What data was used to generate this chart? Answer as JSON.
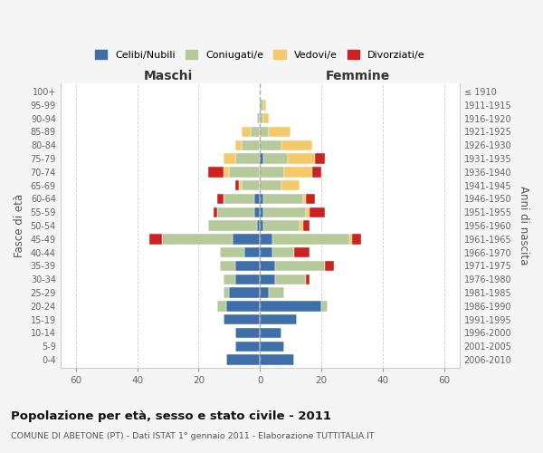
{
  "age_groups": [
    "0-4",
    "5-9",
    "10-14",
    "15-19",
    "20-24",
    "25-29",
    "30-34",
    "35-39",
    "40-44",
    "45-49",
    "50-54",
    "55-59",
    "60-64",
    "65-69",
    "70-74",
    "75-79",
    "80-84",
    "85-89",
    "90-94",
    "95-99",
    "100+"
  ],
  "birth_years": [
    "2006-2010",
    "2001-2005",
    "1996-2000",
    "1991-1995",
    "1986-1990",
    "1981-1985",
    "1976-1980",
    "1971-1975",
    "1966-1970",
    "1961-1965",
    "1956-1960",
    "1951-1955",
    "1946-1950",
    "1941-1945",
    "1936-1940",
    "1931-1935",
    "1926-1930",
    "1921-1925",
    "1916-1920",
    "1911-1915",
    "≤ 1910"
  ],
  "maschi": {
    "celibi": [
      11,
      8,
      8,
      12,
      11,
      10,
      8,
      8,
      5,
      9,
      1,
      2,
      2,
      0,
      0,
      0,
      0,
      0,
      0,
      0,
      0
    ],
    "coniugati": [
      0,
      0,
      0,
      0,
      3,
      2,
      4,
      5,
      8,
      23,
      16,
      12,
      10,
      6,
      10,
      8,
      6,
      3,
      1,
      0,
      0
    ],
    "vedovi": [
      0,
      0,
      0,
      0,
      0,
      0,
      0,
      0,
      0,
      0,
      0,
      0,
      0,
      1,
      2,
      4,
      2,
      3,
      0,
      0,
      0
    ],
    "divorziati": [
      0,
      0,
      0,
      0,
      0,
      0,
      0,
      0,
      0,
      4,
      0,
      1,
      2,
      1,
      5,
      0,
      0,
      0,
      0,
      0,
      0
    ]
  },
  "femmine": {
    "nubili": [
      11,
      8,
      7,
      12,
      20,
      3,
      5,
      5,
      4,
      4,
      1,
      1,
      1,
      0,
      0,
      1,
      0,
      0,
      0,
      0,
      0
    ],
    "coniugate": [
      0,
      0,
      0,
      0,
      2,
      5,
      10,
      16,
      7,
      25,
      12,
      14,
      13,
      7,
      8,
      8,
      7,
      3,
      1,
      1,
      0
    ],
    "vedove": [
      0,
      0,
      0,
      0,
      0,
      0,
      0,
      0,
      0,
      1,
      1,
      1,
      1,
      6,
      9,
      9,
      10,
      7,
      2,
      1,
      0
    ],
    "divorziate": [
      0,
      0,
      0,
      0,
      0,
      0,
      1,
      3,
      5,
      3,
      2,
      5,
      3,
      0,
      3,
      3,
      0,
      0,
      0,
      0,
      0
    ]
  },
  "colors": {
    "celibi": "#3e6fa8",
    "coniugati": "#b5c99a",
    "vedovi": "#f5c96a",
    "divorziati": "#cc2222"
  },
  "xlim": 65,
  "title": "Popolazione per età, sesso e stato civile - 2011",
  "subtitle": "COMUNE DI ABETONE (PT) - Dati ISTAT 1° gennaio 2011 - Elaborazione TUTTITALIA.IT",
  "ylabel_left": "Fasce di età",
  "ylabel_right": "Anni di nascita",
  "xlabel_left": "Maschi",
  "xlabel_right": "Femmine",
  "legend_labels": [
    "Celibi/Nubili",
    "Coniugati/e",
    "Vedovi/e",
    "Divorziati/e"
  ],
  "bg_color": "#f5f5f5",
  "plot_bg_color": "#ffffff"
}
